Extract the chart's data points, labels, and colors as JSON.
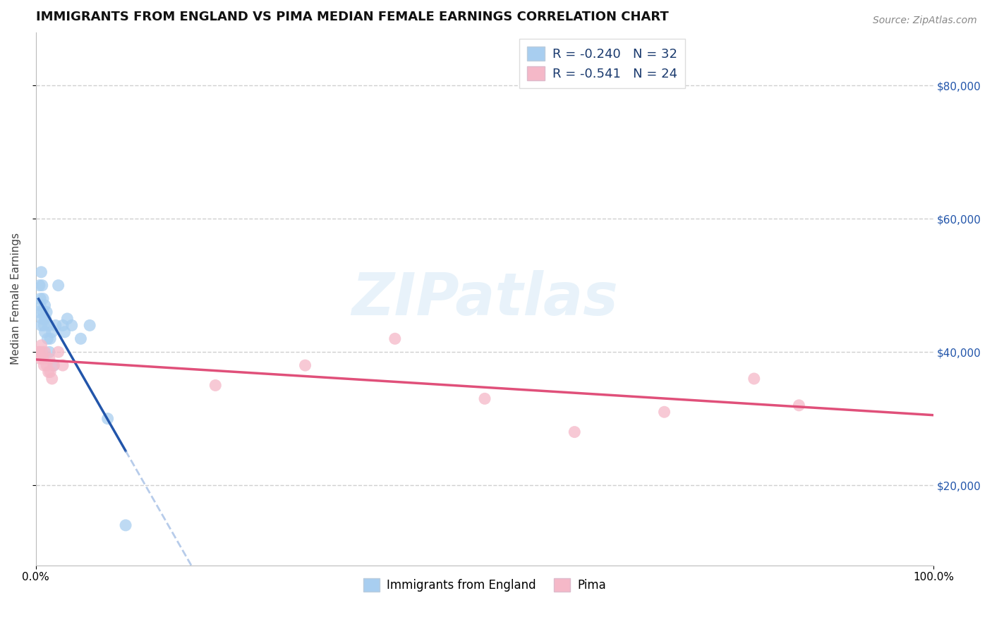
{
  "title": "IMMIGRANTS FROM ENGLAND VS PIMA MEDIAN FEMALE EARNINGS CORRELATION CHART",
  "source": "Source: ZipAtlas.com",
  "ylabel": "Median Female Earnings",
  "xlim": [
    0.0,
    1.0
  ],
  "ylim": [
    8000,
    88000
  ],
  "xtick_positions": [
    0.0,
    1.0
  ],
  "xtick_labels": [
    "0.0%",
    "100.0%"
  ],
  "ytick_values": [
    20000,
    40000,
    60000,
    80000
  ],
  "ytick_labels": [
    "$20,000",
    "$40,000",
    "$60,000",
    "$80,000"
  ],
  "grid_color": "#d0d0d0",
  "bg_color": "#ffffff",
  "blue_R": -0.24,
  "blue_N": 32,
  "pink_R": -0.541,
  "pink_N": 24,
  "blue_color": "#a8cef0",
  "pink_color": "#f5b8c8",
  "blue_line_color": "#2255aa",
  "pink_line_color": "#e0507a",
  "blue_dash_color": "#88aadd",
  "blue_x": [
    0.003,
    0.004,
    0.005,
    0.005,
    0.006,
    0.006,
    0.007,
    0.007,
    0.008,
    0.008,
    0.009,
    0.01,
    0.01,
    0.01,
    0.011,
    0.012,
    0.013,
    0.014,
    0.015,
    0.016,
    0.018,
    0.02,
    0.022,
    0.025,
    0.03,
    0.032,
    0.035,
    0.04,
    0.05,
    0.06,
    0.08,
    0.1
  ],
  "blue_y": [
    46000,
    50000,
    47000,
    48000,
    44000,
    52000,
    45000,
    50000,
    46000,
    48000,
    44000,
    45000,
    47000,
    43000,
    45000,
    46000,
    42000,
    44000,
    40000,
    42000,
    43000,
    38000,
    44000,
    50000,
    44000,
    43000,
    45000,
    44000,
    42000,
    44000,
    30000,
    14000
  ],
  "pink_x": [
    0.003,
    0.004,
    0.005,
    0.006,
    0.007,
    0.008,
    0.009,
    0.01,
    0.012,
    0.014,
    0.015,
    0.016,
    0.018,
    0.02,
    0.025,
    0.03,
    0.2,
    0.3,
    0.4,
    0.5,
    0.6,
    0.7,
    0.8,
    0.85
  ],
  "pink_y": [
    40000,
    40000,
    39000,
    41000,
    40000,
    39000,
    38000,
    40000,
    38000,
    37000,
    39000,
    37000,
    36000,
    38000,
    40000,
    38000,
    35000,
    38000,
    42000,
    33000,
    28000,
    31000,
    36000,
    32000
  ],
  "legend_label_blue": "Immigrants from England",
  "legend_label_pink": "Pima",
  "title_fontsize": 13,
  "axis_label_fontsize": 11,
  "tick_fontsize": 11,
  "legend_fontsize": 12,
  "stats_fontsize": 13
}
